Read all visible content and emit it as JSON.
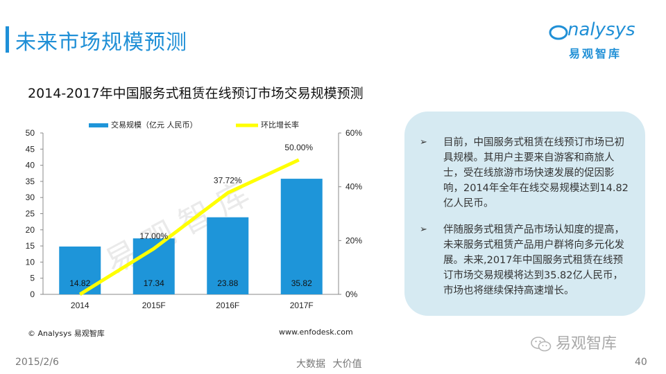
{
  "header": {
    "title": "未来市场规模预测"
  },
  "logo": {
    "name_en": "nalysys",
    "name_cn": "易观智库"
  },
  "chart_title": "2014-2017年中国服务式租赁在线预订市场交易规模预测",
  "chart_data": {
    "type": "bar",
    "categories": [
      "2014",
      "2015F",
      "2016F",
      "2017F"
    ],
    "series": [
      {
        "name": "交易规模（亿元 人民币）",
        "type": "bar",
        "axis": "left",
        "values": [
          14.82,
          17.34,
          23.88,
          35.82
        ],
        "labels": [
          "14.82",
          "17.34",
          "23.88",
          "35.82"
        ]
      },
      {
        "name": "环比增长率",
        "type": "line",
        "axis": "right",
        "values": [
          0,
          17.0,
          37.72,
          50.0
        ],
        "labels": [
          "",
          "17.00%",
          "37.72%",
          "50.00%"
        ]
      }
    ],
    "y_left": {
      "min": 0,
      "max": 50,
      "ticks": [
        "0",
        "5",
        "10",
        "15",
        "20",
        "25",
        "30",
        "35",
        "40",
        "45",
        "50"
      ]
    },
    "y_right": {
      "min": 0,
      "max": 60,
      "ticks": [
        "0%",
        "20%",
        "40%",
        "60%"
      ]
    },
    "legend_position": "top",
    "colors": {
      "bar": "#1e95d9",
      "line": "#ffff00"
    }
  },
  "source": "© Analysys 易观智库",
  "website": "www.enfodesk.com",
  "watermark": "易观智库",
  "panel": {
    "bullets": [
      "目前，中国服务式租赁在线预订市场已初具规模。其用户主要来自游客和商旅人士，受在线旅游市场快速发展的促因影响，2014年全年在线交易规模达到14.82亿人民币。",
      "伴随服务式租赁产品市场认知度的提高，未来服务式租赁产品用户群将向多元化发展。未来,2017年中国服务式租赁在线预订市场交易规模将达到35.82亿人民币，市场也将继续保持高速增长。"
    ]
  },
  "wechat_label": "易观智库",
  "footer": {
    "date": "2015/2/6",
    "center": "大数据 大价值",
    "page": "40"
  }
}
